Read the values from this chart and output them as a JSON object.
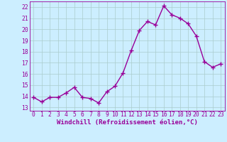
{
  "x": [
    0,
    1,
    2,
    3,
    4,
    5,
    6,
    7,
    8,
    9,
    10,
    11,
    12,
    13,
    14,
    15,
    16,
    17,
    18,
    19,
    20,
    21,
    22,
    23
  ],
  "y": [
    13.9,
    13.5,
    13.9,
    13.9,
    14.3,
    14.8,
    13.9,
    13.8,
    13.4,
    14.4,
    14.9,
    16.1,
    18.1,
    19.9,
    20.7,
    20.4,
    22.1,
    21.3,
    21.0,
    20.5,
    19.4,
    17.1,
    16.6,
    16.9
  ],
  "line_color": "#990099",
  "marker": "+",
  "marker_color": "#990099",
  "bg_color": "#cceeff",
  "grid_color": "#aacccc",
  "xlabel": "Windchill (Refroidissement éolien,°C)",
  "xlabel_fontsize": 6.5,
  "ylabel_values": [
    13,
    14,
    15,
    16,
    17,
    18,
    19,
    20,
    21,
    22
  ],
  "xlim": [
    -0.5,
    23.5
  ],
  "ylim": [
    12.7,
    22.5
  ],
  "tick_fontsize": 5.8,
  "tick_color": "#990099",
  "line_width": 1.0,
  "marker_size": 4.0
}
